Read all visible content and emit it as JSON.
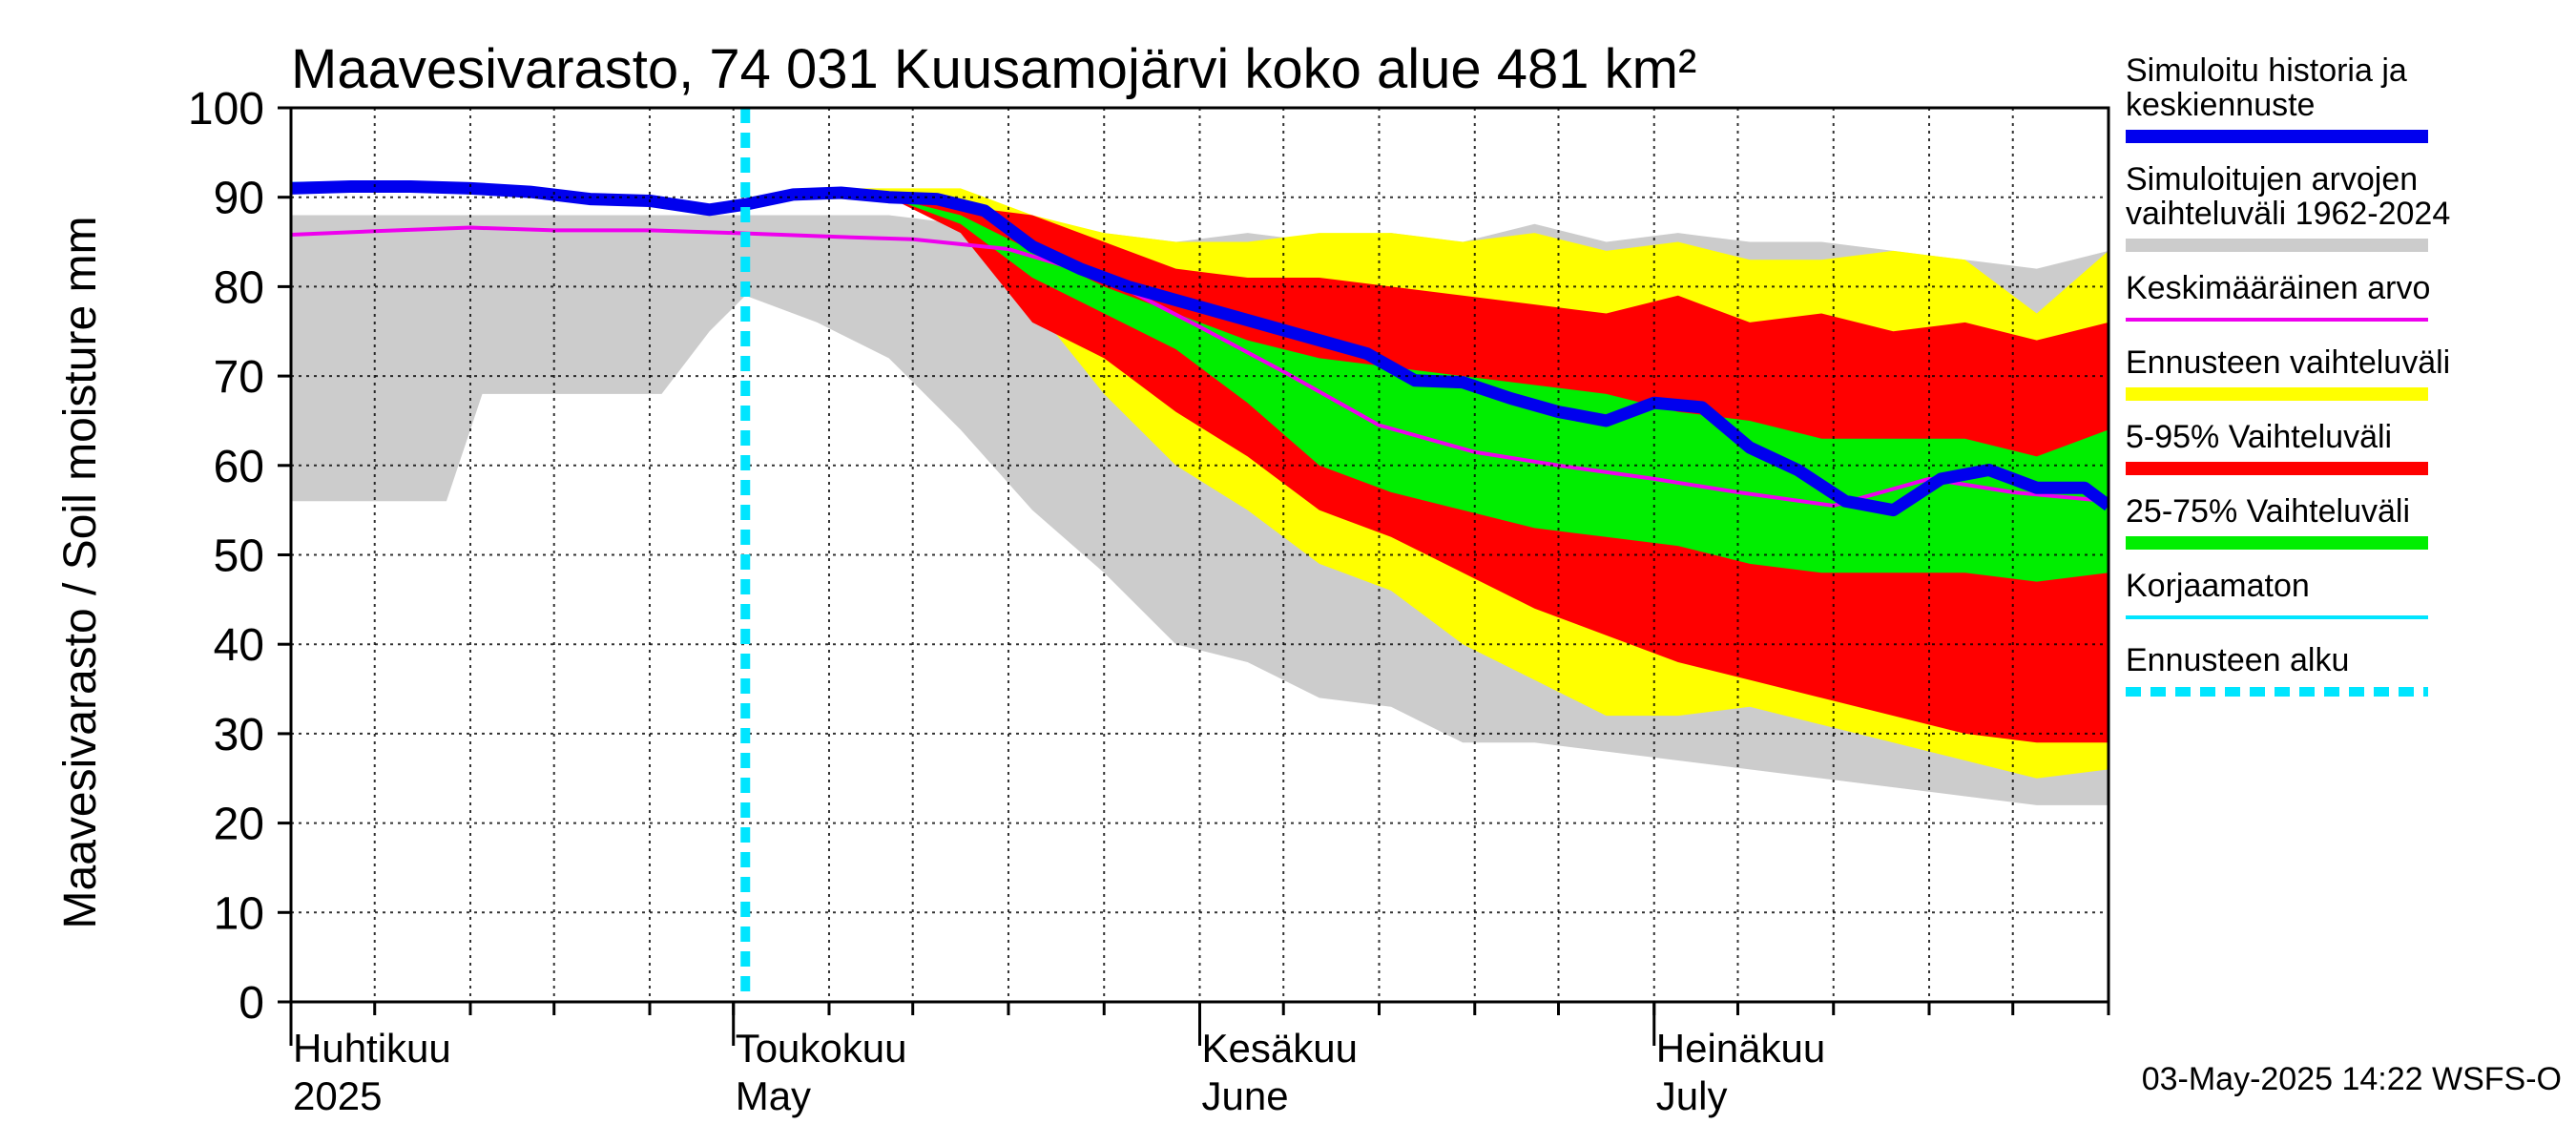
{
  "chart_data": {
    "type": "area",
    "title": "Maavesivarasto, 74 031 Kuusamojärvi koko alue 481 km²",
    "ylabel": "Maavesivarasto / Soil moisture   mm",
    "xlabel": "",
    "ylim": [
      0,
      100
    ],
    "y_ticks": [
      0,
      10,
      20,
      30,
      40,
      50,
      60,
      70,
      80,
      90,
      100
    ],
    "x_range_days": [
      0,
      152
    ],
    "month_labels": [
      {
        "day": 0,
        "fi": "Huhtikuu",
        "en": "2025"
      },
      {
        "day": 37,
        "fi": "Toukokuu",
        "en": "May"
      },
      {
        "day": 76,
        "fi": "Kesäkuu",
        "en": "June"
      },
      {
        "day": 114,
        "fi": "Heinäkuu",
        "en": "July"
      }
    ],
    "x_grid_days": [
      0,
      7,
      15,
      22,
      30,
      37,
      45,
      52,
      60,
      68,
      76,
      83,
      91,
      99,
      106,
      114,
      121,
      129,
      137,
      144,
      152
    ],
    "forecast_start_day": 38,
    "grid": true,
    "legend_position": "right",
    "series": [
      {
        "name": "Simuloitujen arvojen vaihteluväli 1962-2024",
        "kind": "band",
        "color": "#cccccc",
        "x": [
          0,
          13,
          16,
          22,
          31,
          35,
          38,
          44,
          50,
          56,
          62,
          68,
          74,
          80,
          86,
          92,
          98,
          104,
          110,
          116,
          122,
          128,
          134,
          140,
          146,
          152
        ],
        "upper": [
          88,
          88,
          88,
          88,
          88,
          88,
          88,
          88,
          88,
          87,
          86,
          86,
          85,
          86,
          85,
          86,
          85,
          87,
          85,
          86,
          85,
          85,
          84,
          83,
          82,
          84
        ],
        "lower": [
          56,
          56,
          68,
          68,
          68,
          75,
          79,
          76,
          72,
          64,
          55,
          48,
          40,
          38,
          34,
          33,
          29,
          29,
          28,
          27,
          26,
          25,
          24,
          23,
          22,
          22
        ]
      },
      {
        "name": "Ennusteen vaihteluväli",
        "kind": "band",
        "color": "#ffff00",
        "x": [
          38,
          44,
          50,
          56,
          62,
          68,
          74,
          80,
          86,
          92,
          98,
          104,
          110,
          116,
          122,
          128,
          134,
          140,
          146,
          152
        ],
        "upper": [
          90,
          91,
          91,
          91,
          88,
          86,
          85,
          85,
          86,
          86,
          85,
          86,
          84,
          85,
          83,
          83,
          84,
          83,
          77,
          84
        ],
        "lower": [
          90,
          90,
          90,
          87,
          78,
          68,
          60,
          55,
          49,
          46,
          40,
          36,
          32,
          32,
          33,
          31,
          29,
          27,
          25,
          26
        ]
      },
      {
        "name": "5-95% Vaihteluväli",
        "kind": "band",
        "color": "#ff0000",
        "x": [
          38,
          44,
          50,
          56,
          62,
          68,
          74,
          80,
          86,
          92,
          98,
          104,
          110,
          116,
          122,
          128,
          134,
          140,
          146,
          152
        ],
        "upper": [
          90,
          90,
          90,
          89,
          88,
          85,
          82,
          81,
          81,
          80,
          79,
          78,
          77,
          79,
          76,
          77,
          75,
          76,
          74,
          76
        ],
        "lower": [
          90,
          90,
          90,
          86,
          76,
          72,
          66,
          61,
          55,
          52,
          48,
          44,
          41,
          38,
          36,
          34,
          32,
          30,
          29,
          29
        ]
      },
      {
        "name": "25-75% Vaihteluväli",
        "kind": "band",
        "color": "#00ee00",
        "x": [
          38,
          44,
          50,
          56,
          62,
          68,
          74,
          80,
          86,
          92,
          98,
          104,
          110,
          116,
          122,
          128,
          134,
          140,
          146,
          152
        ],
        "upper": [
          90,
          90,
          90,
          88,
          84,
          80,
          77,
          74,
          72,
          71,
          70,
          69,
          68,
          66,
          65,
          63,
          63,
          63,
          61,
          64
        ],
        "lower": [
          90,
          90,
          90,
          87,
          81,
          77,
          73,
          67,
          60,
          57,
          55,
          53,
          52,
          51,
          49,
          48,
          48,
          48,
          47,
          48
        ]
      },
      {
        "name": "Keskimääräinen arvo",
        "kind": "line",
        "color": "#ee00ee",
        "x": [
          0,
          7,
          15,
          22,
          30,
          37,
          45,
          52,
          60,
          68,
          76,
          83,
          91,
          99,
          106,
          114,
          121,
          129,
          137,
          144,
          152
        ],
        "y": [
          85.8,
          86.2,
          86.6,
          86.3,
          86.3,
          86.0,
          85.6,
          85.3,
          84.2,
          81.0,
          75.5,
          70.5,
          64.5,
          61.5,
          60.0,
          58.5,
          57.0,
          55.5,
          58.5,
          57.0,
          56.0
        ]
      },
      {
        "name": "Korjaamaton",
        "kind": "line",
        "color": "#00e5ff",
        "x": [
          0,
          5,
          10,
          15,
          20,
          25,
          30,
          35,
          38
        ],
        "y": [
          91.5,
          91.6,
          91.5,
          91.4,
          91.0,
          90.2,
          89.4,
          88.3,
          89.0
        ]
      },
      {
        "name": "Simuloitu historia ja keskiennuste",
        "kind": "line",
        "color": "#0000ee",
        "x": [
          0,
          5,
          10,
          15,
          20,
          25,
          30,
          35,
          38,
          42,
          46,
          50,
          54,
          58,
          62,
          66,
          70,
          74,
          78,
          82,
          86,
          90,
          94,
          98,
          102,
          106,
          110,
          114,
          118,
          122,
          126,
          130,
          134,
          138,
          142,
          146,
          150,
          152
        ],
        "y": [
          91,
          91.2,
          91.2,
          91,
          90.6,
          89.8,
          89.6,
          88.6,
          89.2,
          90.3,
          90.5,
          90,
          89.8,
          88.5,
          84.5,
          82,
          80,
          78.5,
          77,
          75.5,
          74,
          72.5,
          69.5,
          69.3,
          67.5,
          66,
          65,
          67,
          66.5,
          62,
          59.5,
          56,
          55,
          58.5,
          59.5,
          57.5,
          57.5,
          55.5
        ]
      }
    ],
    "legend": [
      {
        "label": [
          "Simuloitu historia ja",
          "keskiennuste"
        ],
        "color": "#0000ee",
        "style": "thick"
      },
      {
        "label": [
          "Simuloitujen arvojen",
          "vaihteluväli 1962-2024"
        ],
        "color": "#cccccc",
        "style": "thick"
      },
      {
        "label": [
          "Keskimääräinen arvo"
        ],
        "color": "#ee00ee",
        "style": "thin"
      },
      {
        "label": [
          "Ennusteen vaihteluväli"
        ],
        "color": "#ffff00",
        "style": "thick"
      },
      {
        "label": [
          "5-95% Vaihteluväli"
        ],
        "color": "#ff0000",
        "style": "thick"
      },
      {
        "label": [
          "25-75% Vaihteluväli"
        ],
        "color": "#00ee00",
        "style": "thick"
      },
      {
        "label": [
          "Korjaamaton"
        ],
        "color": "#00e5ff",
        "style": "thin"
      },
      {
        "label": [
          "Ennusteen alku"
        ],
        "color": "#00e5ff",
        "style": "dashed"
      }
    ],
    "footer": "03-May-2025 14:22 WSFS-O"
  }
}
